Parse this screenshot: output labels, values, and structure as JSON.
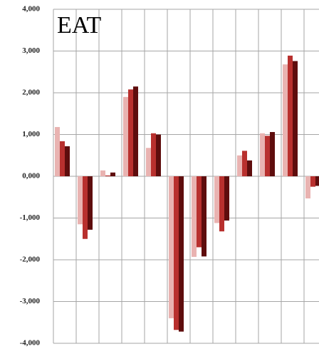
{
  "chart_data": {
    "type": "bar",
    "title": "EAT",
    "categories": [
      null,
      null,
      null,
      null,
      null,
      null,
      null,
      null,
      null,
      null,
      null,
      null
    ],
    "series": [
      {
        "color": "#e9b3b1",
        "values": [
          1180,
          -1150,
          140,
          1900,
          680,
          -3400,
          -1930,
          -1120,
          500,
          1030,
          2680,
          -530
        ]
      },
      {
        "color": "#b8302e",
        "values": [
          840,
          -1500,
          20,
          2080,
          1030,
          -3680,
          -1700,
          -1320,
          610,
          970,
          2890,
          -250
        ]
      },
      {
        "color": "#5e0d0d",
        "values": [
          720,
          -1280,
          90,
          2150,
          1000,
          -3720,
          -1920,
          -1060,
          380,
          1060,
          2760,
          -230
        ]
      }
    ],
    "ylim": [
      -4000,
      4000
    ],
    "yticks": [
      {
        "value": -4000,
        "label": "-4,000"
      },
      {
        "value": -3000,
        "label": "-3,000"
      },
      {
        "value": -2000,
        "label": "-2,000"
      },
      {
        "value": -1000,
        "label": "-1,000"
      },
      {
        "value": 0,
        "label": "0,000"
      },
      {
        "value": 1000,
        "label": "1,000"
      },
      {
        "value": 2000,
        "label": "2,000"
      },
      {
        "value": 3000,
        "label": "3,000"
      },
      {
        "value": 4000,
        "label": "4,000"
      }
    ],
    "grid": true
  }
}
